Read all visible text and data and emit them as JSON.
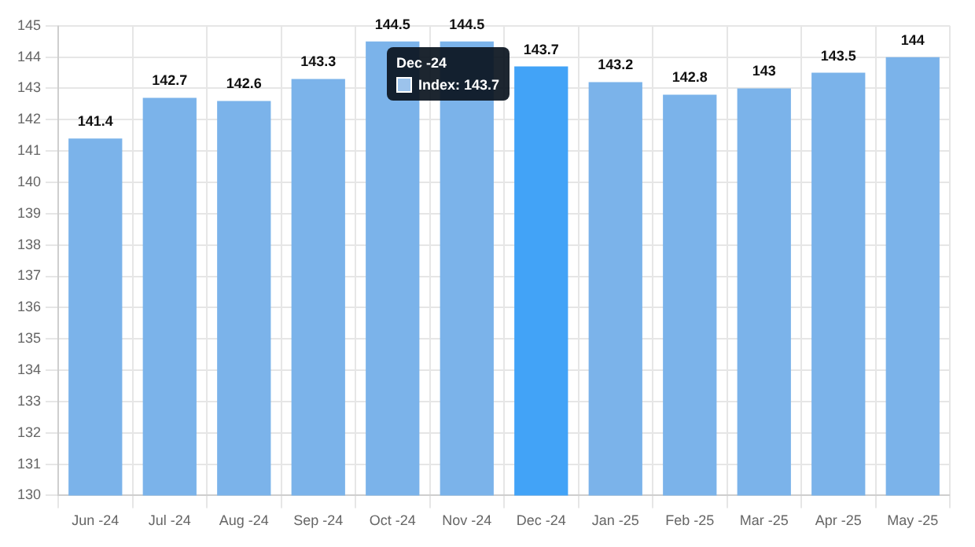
{
  "chart_data": {
    "type": "bar",
    "categories": [
      "Jun -24",
      "Jul -24",
      "Aug -24",
      "Sep -24",
      "Oct -24",
      "Nov -24",
      "Dec -24",
      "Jan -25",
      "Feb -25",
      "Mar -25",
      "Apr -25",
      "May -25"
    ],
    "values": [
      141.4,
      142.7,
      142.6,
      143.3,
      144.5,
      144.5,
      143.7,
      143.2,
      142.8,
      143,
      143.5,
      144
    ],
    "colors": [
      "#7bb3ea",
      "#7bb3ea",
      "#7bb3ea",
      "#7bb3ea",
      "#7bb3ea",
      "#7bb3ea",
      "#42a3f7",
      "#7bb3ea",
      "#7bb3ea",
      "#7bb3ea",
      "#7bb3ea",
      "#7bb3ea"
    ],
    "ylim": [
      130,
      145
    ],
    "yticks": [
      130,
      131,
      132,
      133,
      134,
      135,
      136,
      137,
      138,
      139,
      140,
      141,
      142,
      143,
      144,
      145
    ],
    "grid": true,
    "legend": false,
    "data_labels": true,
    "annotations": [
      "Dec -24",
      "Index: 143.7"
    ]
  }
}
